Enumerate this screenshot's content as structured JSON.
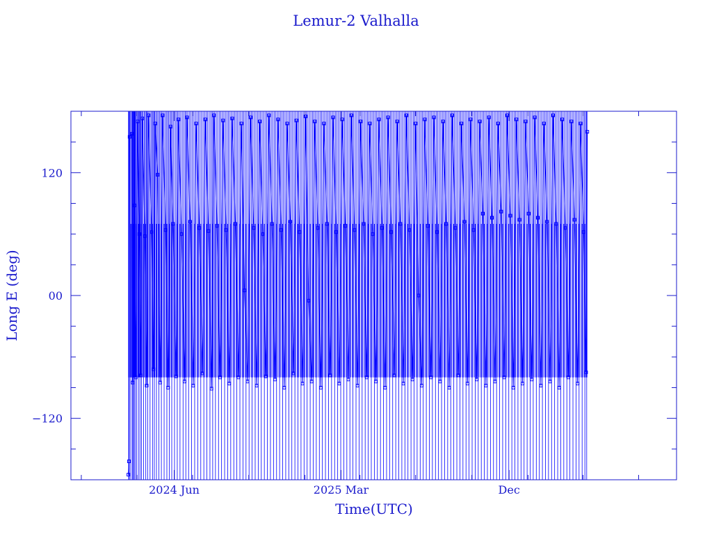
{
  "chart_data": {
    "type": "line",
    "title": "Lemur-2 Valhalla",
    "xlabel": "Time(UTC)",
    "ylabel": "Long E (deg)",
    "ylim": [
      -180,
      180
    ],
    "xlim": [
      "2023-12-15",
      "2026-09-01"
    ],
    "x_ticks": [
      {
        "date": "2024-06-01",
        "label": "2024 Jun"
      },
      {
        "date": "2025-03-01",
        "label": "2025 Mar"
      },
      {
        "date": "2025-12-01",
        "label": "Dec"
      }
    ],
    "y_ticks": [
      {
        "value": 120,
        "label": "120"
      },
      {
        "value": 0,
        "label": "00"
      },
      {
        "value": -120,
        "label": "−120"
      }
    ],
    "grid": false,
    "marker": "square",
    "color": "#0000ff",
    "series": [
      {
        "x_range": [
          "2024-03-18",
          "2026-04-08"
        ],
        "note_levels": [
          171,
          70,
          -80
        ],
        "points": [
          [
            "2024-03-18",
            -175
          ],
          [
            "2024-03-19",
            -162
          ],
          [
            "2024-03-20",
            155
          ],
          [
            "2024-03-24",
            158
          ],
          [
            "2024-03-25",
            -85
          ],
          [
            "2024-03-27",
            67
          ],
          [
            "2024-03-28",
            88
          ],
          [
            "2024-03-30",
            -80
          ],
          [
            "2024-04-02",
            170
          ],
          [
            "2024-04-05",
            60
          ],
          [
            "2024-04-07",
            -78
          ],
          [
            "2024-04-10",
            173
          ],
          [
            "2024-04-14",
            58
          ],
          [
            "2024-04-17",
            -88
          ],
          [
            "2024-04-20",
            176
          ],
          [
            "2024-04-25",
            62
          ],
          [
            "2024-04-28",
            -72
          ],
          [
            "2024-05-01",
            168
          ],
          [
            "2024-05-05",
            118
          ],
          [
            "2024-05-09",
            -85
          ],
          [
            "2024-05-13",
            176
          ],
          [
            "2024-05-18",
            64
          ],
          [
            "2024-05-22",
            -90
          ],
          [
            "2024-05-26",
            165
          ],
          [
            "2024-05-30",
            70
          ],
          [
            "2024-06-04",
            -79
          ],
          [
            "2024-06-08",
            172
          ],
          [
            "2024-06-13",
            60
          ],
          [
            "2024-06-18",
            -84
          ],
          [
            "2024-06-22",
            174
          ],
          [
            "2024-06-27",
            72
          ],
          [
            "2024-07-02",
            -88
          ],
          [
            "2024-07-07",
            168
          ],
          [
            "2024-07-12",
            66
          ],
          [
            "2024-07-17",
            -76
          ],
          [
            "2024-07-22",
            172
          ],
          [
            "2024-07-27",
            63
          ],
          [
            "2024-08-01",
            -91
          ],
          [
            "2024-08-05",
            176
          ],
          [
            "2024-08-10",
            68
          ],
          [
            "2024-08-15",
            -80
          ],
          [
            "2024-08-20",
            171
          ],
          [
            "2024-08-25",
            64
          ],
          [
            "2024-08-30",
            -86
          ],
          [
            "2024-09-04",
            173
          ],
          [
            "2024-09-09",
            70
          ],
          [
            "2024-09-14",
            -80
          ],
          [
            "2024-09-19",
            168
          ],
          [
            "2024-09-24",
            5
          ],
          [
            "2024-09-29",
            -84
          ],
          [
            "2024-10-04",
            174
          ],
          [
            "2024-10-09",
            66
          ],
          [
            "2024-10-14",
            -88
          ],
          [
            "2024-10-19",
            170
          ],
          [
            "2024-10-24",
            60
          ],
          [
            "2024-10-29",
            -79
          ],
          [
            "2024-11-03",
            176
          ],
          [
            "2024-11-08",
            70
          ],
          [
            "2024-11-13",
            -82
          ],
          [
            "2024-11-18",
            172
          ],
          [
            "2024-11-23",
            64
          ],
          [
            "2024-11-28",
            -90
          ],
          [
            "2024-12-03",
            168
          ],
          [
            "2024-12-08",
            72
          ],
          [
            "2024-12-13",
            -76
          ],
          [
            "2024-12-18",
            171
          ],
          [
            "2024-12-23",
            62
          ],
          [
            "2024-12-28",
            -86
          ],
          [
            "2025-01-02",
            175
          ],
          [
            "2025-01-07",
            -5
          ],
          [
            "2025-01-12",
            -84
          ],
          [
            "2025-01-17",
            170
          ],
          [
            "2025-01-22",
            66
          ],
          [
            "2025-01-27",
            -90
          ],
          [
            "2025-02-01",
            168
          ],
          [
            "2025-02-06",
            70
          ],
          [
            "2025-02-11",
            -78
          ],
          [
            "2025-02-16",
            174
          ],
          [
            "2025-02-21",
            62
          ],
          [
            "2025-02-26",
            -86
          ],
          [
            "2025-03-03",
            172
          ],
          [
            "2025-03-08",
            68
          ],
          [
            "2025-03-13",
            -82
          ],
          [
            "2025-03-18",
            176
          ],
          [
            "2025-03-23",
            64
          ],
          [
            "2025-03-28",
            -88
          ],
          [
            "2025-04-02",
            170
          ],
          [
            "2025-04-07",
            70
          ],
          [
            "2025-04-12",
            -80
          ],
          [
            "2025-04-17",
            168
          ],
          [
            "2025-04-22",
            60
          ],
          [
            "2025-04-27",
            -84
          ],
          [
            "2025-05-02",
            172
          ],
          [
            "2025-05-07",
            66
          ],
          [
            "2025-05-12",
            -90
          ],
          [
            "2025-05-17",
            174
          ],
          [
            "2025-05-22",
            62
          ],
          [
            "2025-05-27",
            -78
          ],
          [
            "2025-06-01",
            170
          ],
          [
            "2025-06-06",
            70
          ],
          [
            "2025-06-11",
            -86
          ],
          [
            "2025-06-16",
            176
          ],
          [
            "2025-06-21",
            64
          ],
          [
            "2025-06-26",
            -82
          ],
          [
            "2025-07-01",
            168
          ],
          [
            "2025-07-06",
            0
          ],
          [
            "2025-07-11",
            -88
          ],
          [
            "2025-07-16",
            172
          ],
          [
            "2025-07-21",
            68
          ],
          [
            "2025-07-26",
            -80
          ],
          [
            "2025-07-31",
            174
          ],
          [
            "2025-08-05",
            62
          ],
          [
            "2025-08-10",
            -84
          ],
          [
            "2025-08-15",
            170
          ],
          [
            "2025-08-20",
            70
          ],
          [
            "2025-08-25",
            -90
          ],
          [
            "2025-08-30",
            176
          ],
          [
            "2025-09-04",
            66
          ],
          [
            "2025-09-09",
            -78
          ],
          [
            "2025-09-14",
            168
          ],
          [
            "2025-09-19",
            72
          ],
          [
            "2025-09-24",
            -86
          ],
          [
            "2025-09-29",
            172
          ],
          [
            "2025-10-04",
            64
          ],
          [
            "2025-10-09",
            -82
          ],
          [
            "2025-10-14",
            170
          ],
          [
            "2025-10-19",
            80
          ],
          [
            "2025-10-24",
            -88
          ],
          [
            "2025-10-29",
            174
          ],
          [
            "2025-11-03",
            76
          ],
          [
            "2025-11-08",
            -84
          ],
          [
            "2025-11-13",
            168
          ],
          [
            "2025-11-18",
            82
          ],
          [
            "2025-11-23",
            -80
          ],
          [
            "2025-11-28",
            176
          ],
          [
            "2025-12-03",
            78
          ],
          [
            "2025-12-08",
            -90
          ],
          [
            "2025-12-13",
            172
          ],
          [
            "2025-12-18",
            74
          ],
          [
            "2025-12-23",
            -86
          ],
          [
            "2025-12-28",
            170
          ],
          [
            "2026-01-02",
            80
          ],
          [
            "2026-01-07",
            -82
          ],
          [
            "2026-01-12",
            174
          ],
          [
            "2026-01-17",
            76
          ],
          [
            "2026-01-22",
            -88
          ],
          [
            "2026-01-27",
            168
          ],
          [
            "2026-02-01",
            72
          ],
          [
            "2026-02-06",
            -84
          ],
          [
            "2026-02-11",
            176
          ],
          [
            "2026-02-16",
            70
          ],
          [
            "2026-02-21",
            -90
          ],
          [
            "2026-02-26",
            172
          ],
          [
            "2026-03-03",
            66
          ],
          [
            "2026-03-08",
            -80
          ],
          [
            "2026-03-13",
            170
          ],
          [
            "2026-03-18",
            74
          ],
          [
            "2026-03-23",
            -86
          ],
          [
            "2026-03-28",
            168
          ],
          [
            "2026-04-02",
            62
          ],
          [
            "2026-04-06",
            -75
          ],
          [
            "2026-04-08",
            160
          ]
        ]
      }
    ]
  }
}
